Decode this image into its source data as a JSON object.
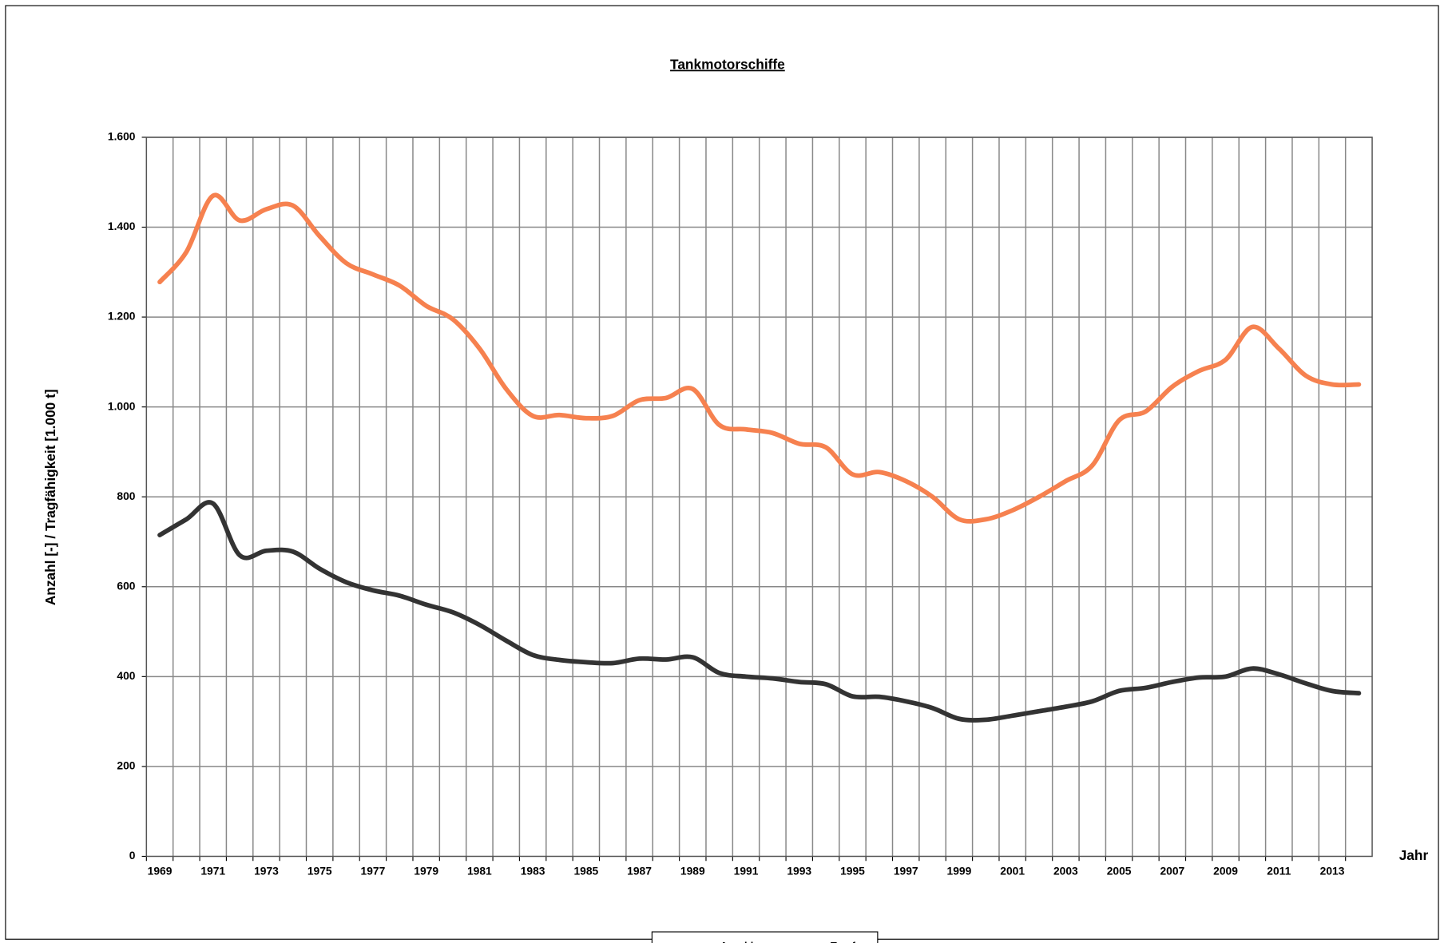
{
  "chart_data": {
    "type": "line",
    "title": "Tankmotorschiffe",
    "y_label": "Anzahl [-] / Tragfähigkeit [1.000 t]",
    "x_label": "Jahr",
    "categories": [
      "1969",
      null,
      "1971",
      null,
      "1973",
      null,
      "1975",
      null,
      "1977",
      null,
      "1979",
      null,
      "1981",
      null,
      "1983",
      null,
      "1985",
      null,
      "1987",
      null,
      "1989",
      null,
      "1991",
      null,
      "1993",
      null,
      "1995",
      null,
      "1997",
      null,
      "1999",
      null,
      "2001",
      null,
      "2003",
      null,
      "2005",
      null,
      "2007",
      null,
      "2009",
      null,
      "2011",
      null,
      "2013",
      null
    ],
    "series": [
      {
        "name": "Anzahl",
        "color": "#333333",
        "values": [
          715,
          750,
          785,
          670,
          680,
          678,
          640,
          610,
          592,
          580,
          560,
          543,
          515,
          480,
          448,
          437,
          432,
          430,
          440,
          438,
          443,
          408,
          400,
          396,
          388,
          383,
          356,
          355,
          345,
          330,
          306,
          304,
          313,
          323,
          333,
          345,
          368,
          375,
          388,
          398,
          400,
          418,
          405,
          385,
          368,
          363
        ]
      },
      {
        "name": "Tragf.",
        "color": "#f6814f",
        "values": [
          1278,
          1345,
          1470,
          1415,
          1440,
          1448,
          1380,
          1320,
          1295,
          1270,
          1225,
          1195,
          1130,
          1040,
          980,
          982,
          975,
          980,
          1015,
          1020,
          1040,
          960,
          950,
          942,
          918,
          910,
          850,
          855,
          835,
          800,
          750,
          750,
          770,
          800,
          835,
          870,
          970,
          990,
          1045,
          1080,
          1105,
          1178,
          1130,
          1070,
          1050,
          1050
        ]
      }
    ],
    "ylim": [
      0,
      1600
    ],
    "yticks": [
      0,
      200,
      400,
      600,
      800,
      {
        "value": 1000,
        "label": "1.000"
      },
      {
        "value": 1200,
        "label": "1.200"
      },
      {
        "value": 1400,
        "label": "1.400"
      },
      {
        "value": 1600,
        "label": "1.600"
      }
    ],
    "grid": true,
    "legend": "bottom"
  }
}
